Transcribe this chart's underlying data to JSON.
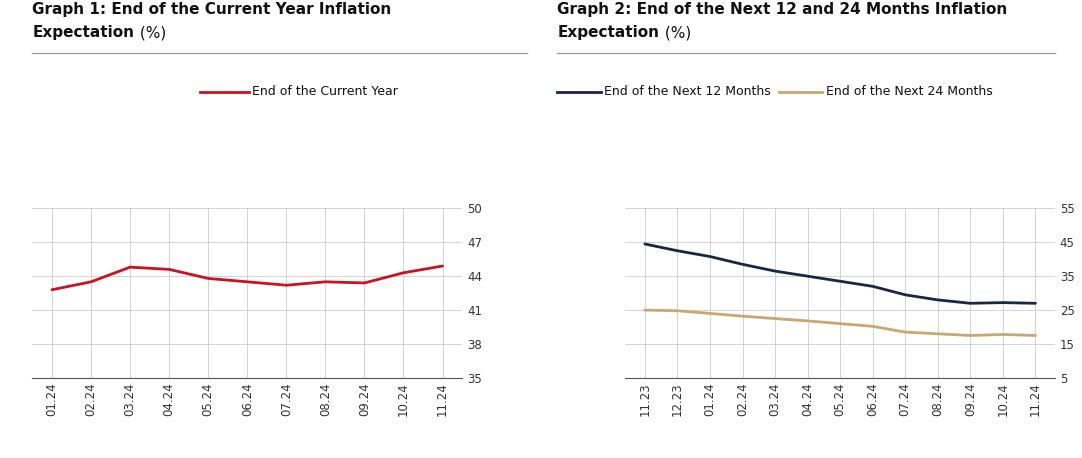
{
  "graph1": {
    "title_line1_bold": "Graph 1: End of the Current Year Inflation",
    "title_line2_bold": "Expectation",
    "title_line2_normal": " (%)",
    "x_labels": [
      "01.24",
      "02.24",
      "03.24",
      "04.24",
      "05.24",
      "06.24",
      "07.24",
      "08.24",
      "09.24",
      "10.24",
      "11.24"
    ],
    "y_values": [
      42.8,
      43.5,
      44.8,
      44.6,
      43.8,
      43.5,
      43.2,
      43.5,
      43.4,
      44.3,
      44.9
    ],
    "line_color": "#cc1122",
    "ylim": [
      35,
      50
    ],
    "yticks": [
      35,
      38,
      41,
      44,
      47,
      50
    ],
    "legend_label": "End of the Current Year"
  },
  "graph2": {
    "title_line1_bold": "Graph 2: End of the Next 12 and 24 Months Inflation",
    "title_line2_bold": "Expectation",
    "title_line2_normal": " (%)",
    "x_labels": [
      "11.23",
      "12.23",
      "01.24",
      "02.24",
      "03.24",
      "04.24",
      "05.24",
      "06.24",
      "07.24",
      "08.24",
      "09.24",
      "10.24",
      "11.24"
    ],
    "y_values_12m": [
      44.5,
      42.5,
      40.8,
      38.5,
      36.5,
      35.0,
      33.5,
      32.0,
      29.5,
      28.0,
      27.0,
      27.2,
      27.0
    ],
    "y_values_24m": [
      25.0,
      24.8,
      24.0,
      23.2,
      22.5,
      21.8,
      21.0,
      20.2,
      18.5,
      18.0,
      17.5,
      17.8,
      17.5
    ],
    "line_color_12m": "#1a2744",
    "line_color_24m": "#c8a870",
    "ylim": [
      5,
      55
    ],
    "yticks": [
      5,
      15,
      25,
      35,
      45,
      55
    ],
    "legend_label_12m": "End of the Next 12 Months",
    "legend_label_24m": "End of the Next 24 Months"
  },
  "bg_color": "#ffffff",
  "grid_color": "#cccccc",
  "tick_fontsize": 8.5,
  "title_fontsize": 11,
  "legend_fontsize": 9,
  "sep_line_color": "#999999"
}
